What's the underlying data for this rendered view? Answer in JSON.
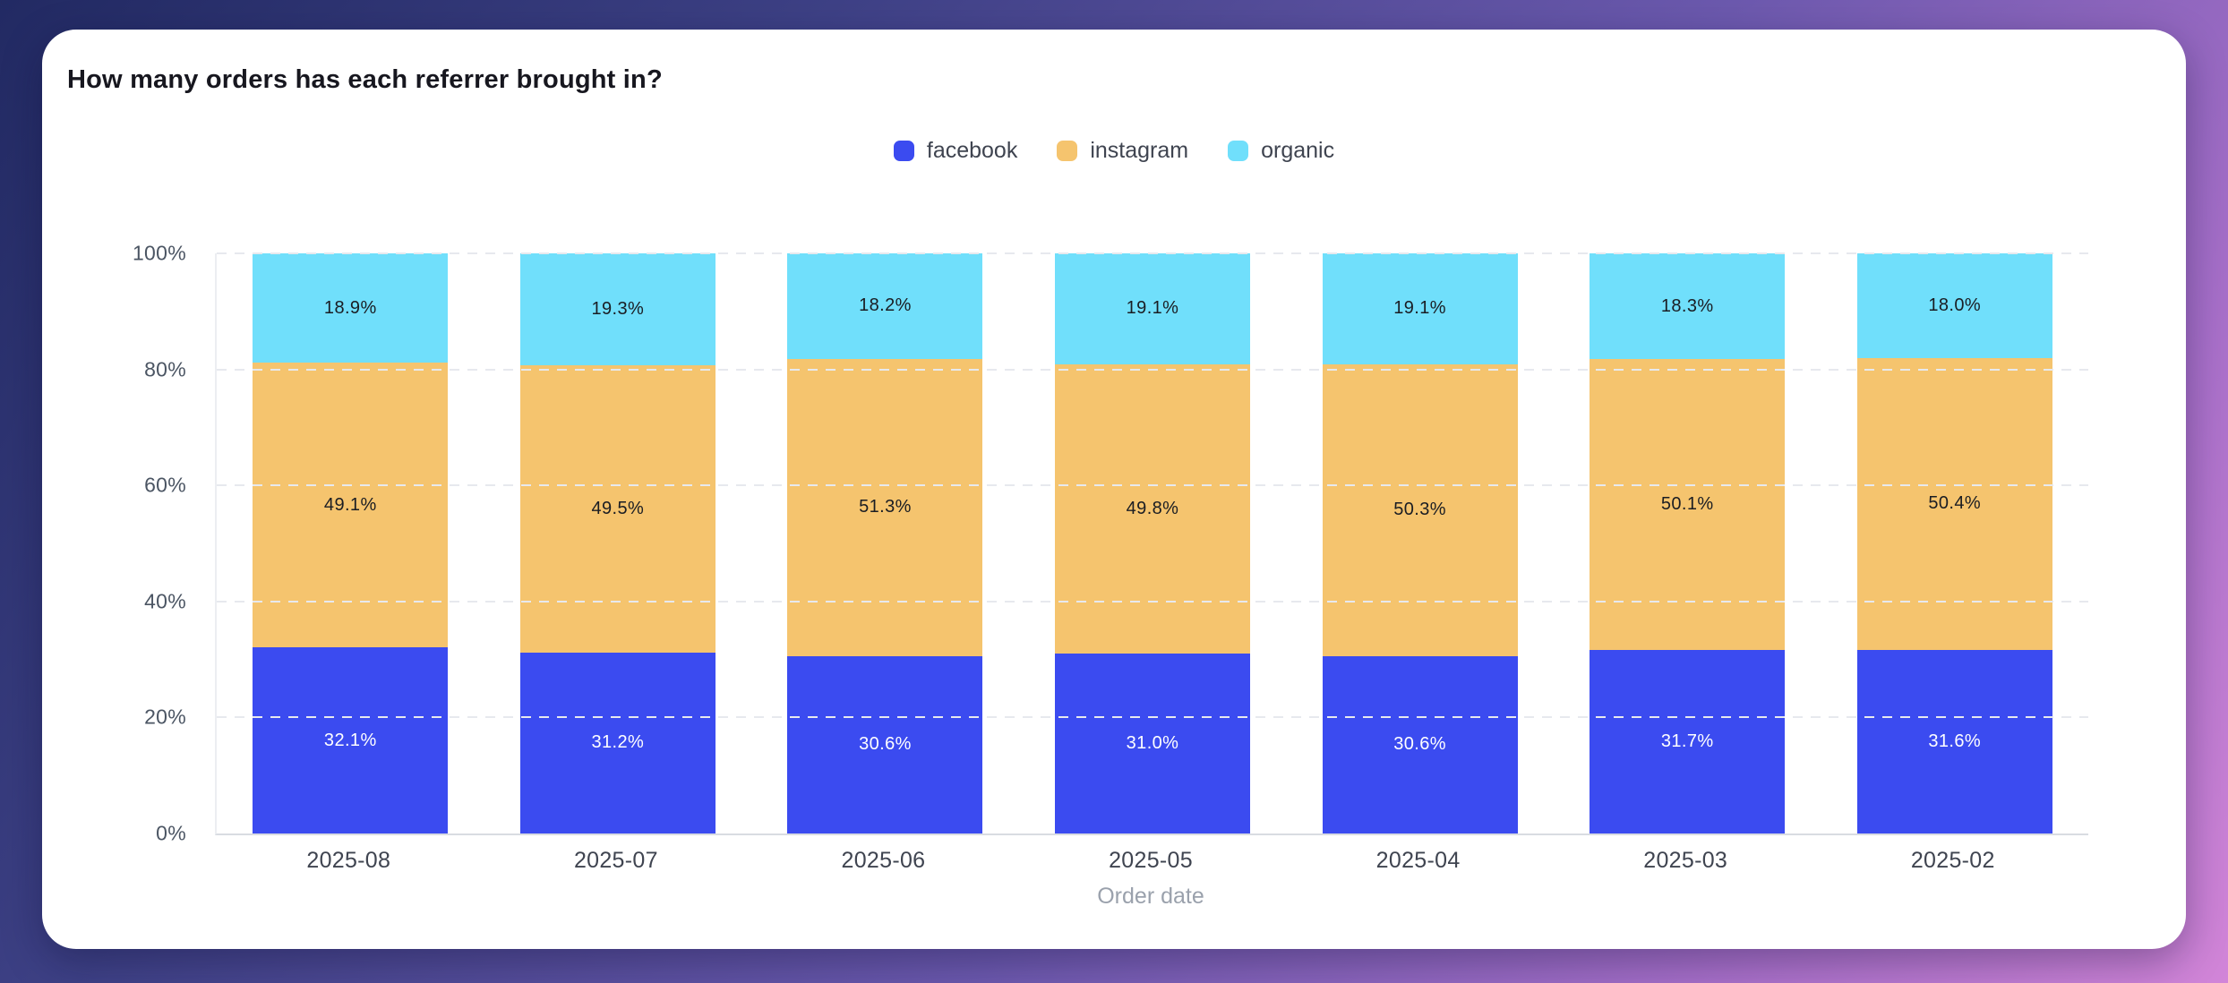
{
  "title": "How many orders has each referrer brought in?",
  "colors": {
    "facebook": "#3b4bf0",
    "instagram": "#f5c46e",
    "organic": "#70dffb",
    "card_background": "#ffffff",
    "background_gradient": [
      "#222a63",
      "#6c59ae",
      "#d285d8"
    ]
  },
  "chart_data": {
    "type": "bar",
    "stacked": true,
    "stack_mode": "percent",
    "title": "How many orders has each referrer brought in?",
    "categories": [
      "2025-08",
      "2025-07",
      "2025-06",
      "2025-05",
      "2025-04",
      "2025-03",
      "2025-02"
    ],
    "series": [
      {
        "name": "facebook",
        "color": "#3b4bf0",
        "label_color": "#ffffff",
        "values": [
          32.1,
          31.2,
          30.6,
          31.0,
          30.6,
          31.7,
          31.6
        ]
      },
      {
        "name": "instagram",
        "color": "#f5c46e",
        "label_color": "#1a1d23",
        "values": [
          49.1,
          49.5,
          51.3,
          49.8,
          50.3,
          50.1,
          50.4
        ]
      },
      {
        "name": "organic",
        "color": "#70dffb",
        "label_color": "#1a1d23",
        "values": [
          18.9,
          19.3,
          18.2,
          19.1,
          19.1,
          18.3,
          18.0
        ]
      }
    ],
    "xlabel": "Order date",
    "ylabel": "",
    "ylim": [
      0,
      100
    ],
    "y_ticks": [
      "100%",
      "80%",
      "60%",
      "40%",
      "20%",
      "0%"
    ],
    "grid": "dashed horizontal",
    "legend_position": "top center",
    "value_suffix": "%"
  }
}
